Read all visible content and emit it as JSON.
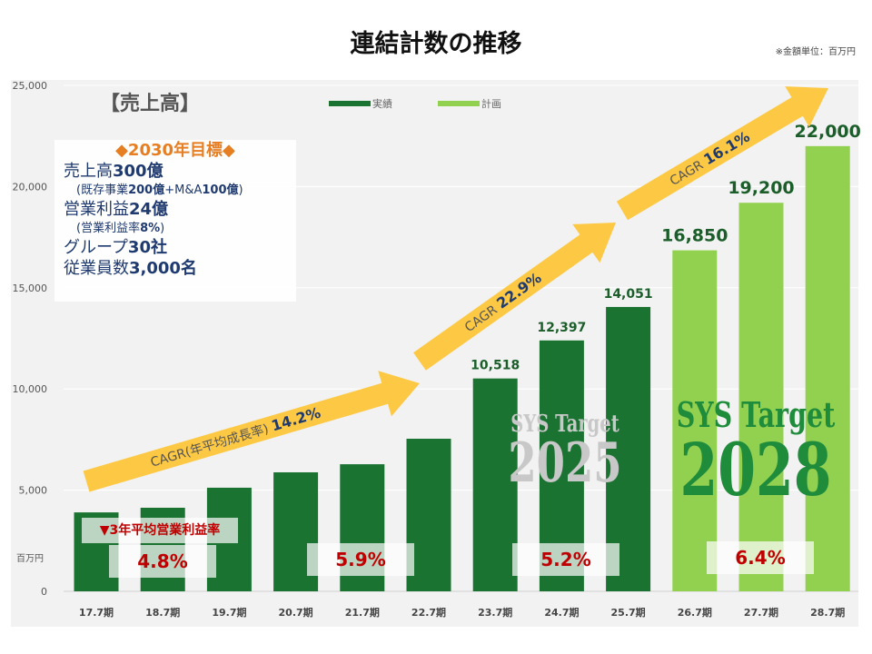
{
  "title": "連結計数の推移",
  "unit_note": "※金額単位：百万円",
  "chart_data": {
    "type": "bar",
    "categories": [
      "17.7期",
      "18.7期",
      "19.7期",
      "20.7期",
      "21.7期",
      "22.7期",
      "23.7期",
      "24.7期",
      "25.7期",
      "26.7期",
      "27.7期",
      "28.7期"
    ],
    "series": [
      {
        "name": "実績",
        "color": "#1b7332",
        "values": [
          3900,
          4130,
          5120,
          5880,
          6280,
          7540,
          10518,
          12397,
          14051,
          null,
          null,
          null
        ]
      },
      {
        "name": "計画",
        "color": "#92d050",
        "values": [
          null,
          null,
          null,
          null,
          null,
          null,
          null,
          null,
          null,
          16850,
          19200,
          22000
        ]
      }
    ],
    "data_labels": {
      "6": "10,518",
      "7": "12,397",
      "8": "14,051",
      "9": "16,850",
      "10": "19,200",
      "11": "22,000"
    },
    "ylim": [
      0,
      25000
    ],
    "yticks": [
      "0",
      "5,000",
      "10,000",
      "15,000",
      "20,000",
      "25,000"
    ],
    "ylabel": "百万円",
    "grid": true,
    "legend": "top-center",
    "annotations": {
      "chart_label": "【売上高】",
      "cagr": [
        {
          "text": "CAGR(年平均成長率) ",
          "value": "14.2%"
        },
        {
          "text": "CAGR ",
          "value": "22.9%"
        },
        {
          "text": "CAGR ",
          "value": "16.1%"
        }
      ],
      "watermarks": [
        {
          "line1": "SYS Target",
          "line2": "2025",
          "color": "#c8c8c8"
        },
        {
          "line1": "SYS Target",
          "line2": "2028",
          "color": "#1e8c3a"
        }
      ],
      "margin_header": "▼3年平均営業利益率",
      "margins": [
        "4.8%",
        "5.9%",
        "5.2%",
        "6.4%"
      ]
    }
  },
  "goal": {
    "header": "◆2030年目標◆",
    "lines": [
      {
        "a": "売上高",
        "b": "300億"
      },
      {
        "a": "(既存事業",
        "b": "200億",
        "c": "+M&A",
        "d": "100億",
        "e": ")"
      },
      {
        "a": "営業利益",
        "b": "24億"
      },
      {
        "a": "(営業利益率",
        "b": "8%",
        "c": ")"
      },
      {
        "a": "グループ",
        "b": "30社"
      },
      {
        "a": "従業員数",
        "b": "3,000名"
      }
    ]
  },
  "colors": {
    "arrow": "#fdc944",
    "actual": "#1b7332",
    "plan": "#92d050",
    "margin_text": "#c00000",
    "goal_header": "#e67e22",
    "goal_text": "#1f3a6e"
  }
}
